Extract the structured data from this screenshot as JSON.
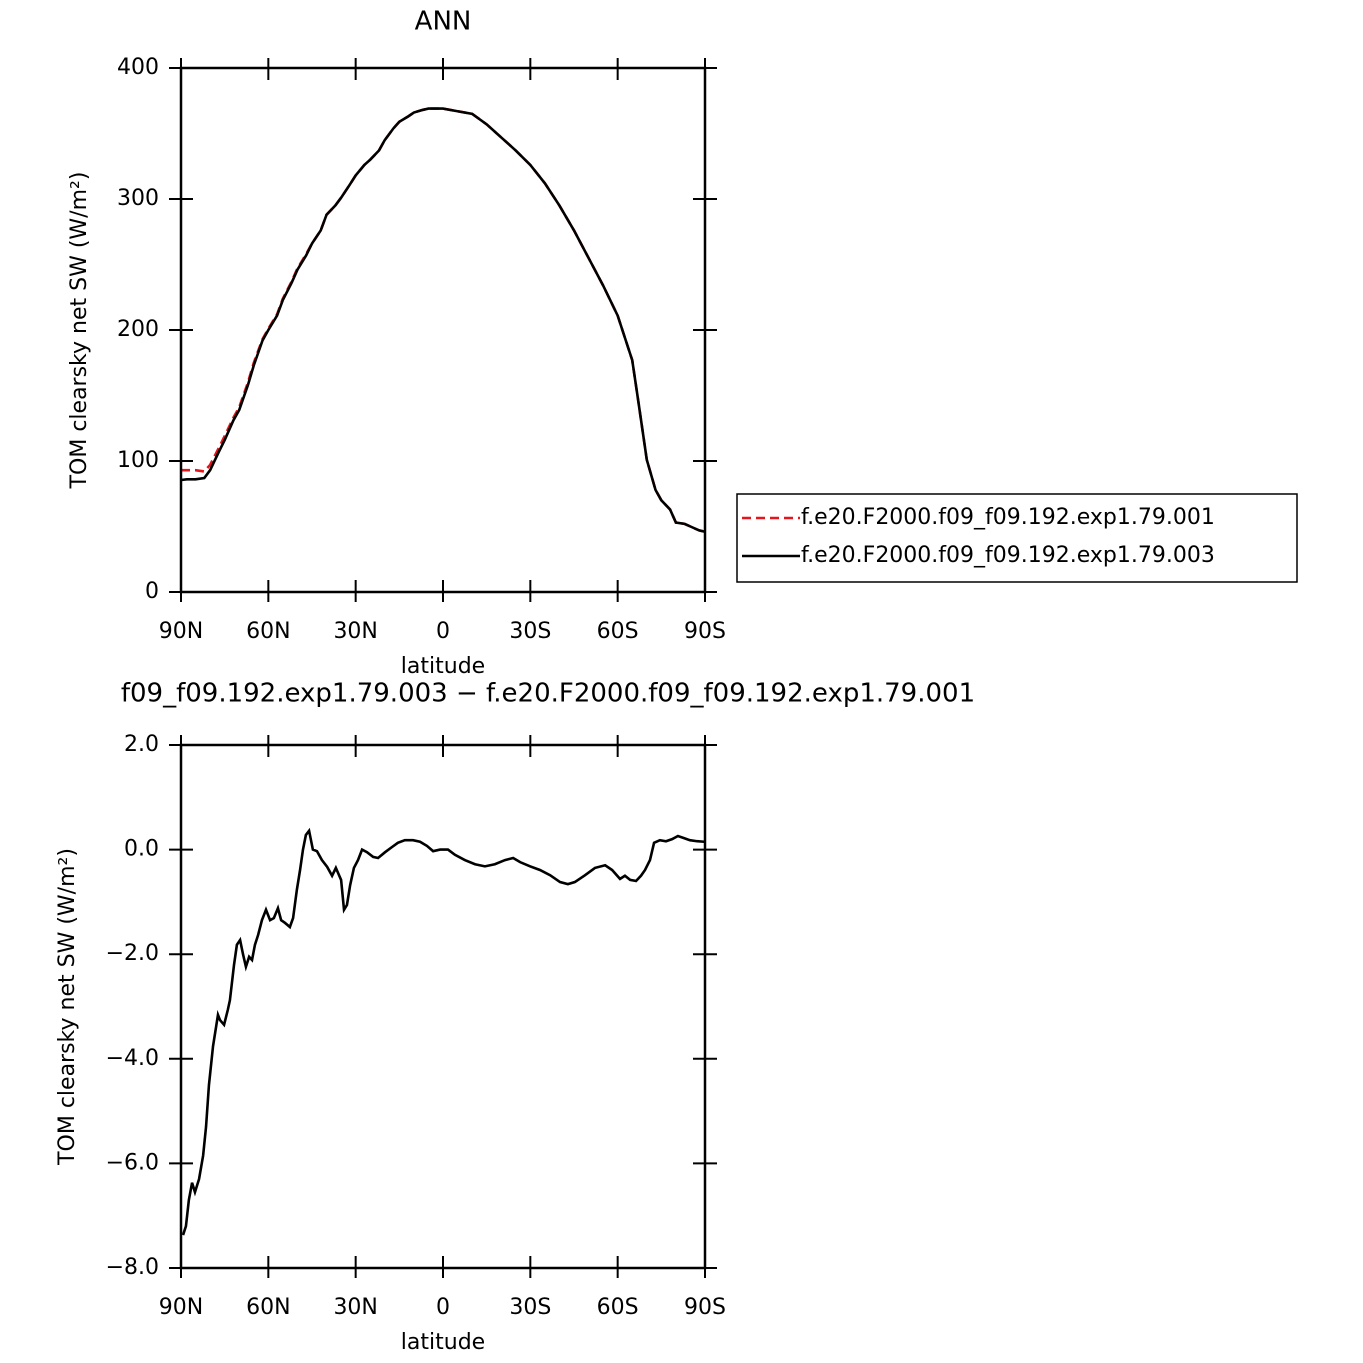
{
  "chart_data": [
    {
      "type": "line",
      "title": "ANN",
      "xlabel": "latitude",
      "ylabel": "TOM clearsky net SW (W/m²)",
      "xlim": [
        90,
        -90
      ],
      "xticks": [
        {
          "value": 90,
          "label": "90N"
        },
        {
          "value": 60,
          "label": "60N"
        },
        {
          "value": 30,
          "label": "30N"
        },
        0,
        {
          "value": -30,
          "label": "30S"
        },
        {
          "value": -60,
          "label": "60S"
        },
        {
          "value": -90,
          "label": "90S"
        }
      ],
      "ylim": [
        0,
        400
      ],
      "yticks": [
        0,
        100,
        200,
        300,
        400
      ],
      "legend": "right",
      "x": [
        90,
        88,
        85,
        82,
        80,
        77,
        75,
        72,
        70,
        67,
        65,
        62,
        60,
        57,
        55,
        52,
        50,
        47,
        45,
        42,
        40,
        37,
        35,
        32,
        30,
        27,
        25,
        22,
        20,
        17,
        15,
        12,
        10,
        7,
        5,
        0,
        -5,
        -10,
        -15,
        -20,
        -25,
        -30,
        -35,
        -40,
        -45,
        -50,
        -55,
        -60,
        -65,
        -67,
        -70,
        -73,
        -75,
        -78,
        -80,
        -83,
        -85,
        -88,
        -90
      ],
      "series": [
        {
          "name": "f.e20.F2000.f09_f09.192.exp1.79.001",
          "color": "#e8141c",
          "line_style": "dashed",
          "values": [
            93,
            93,
            93,
            92,
            97,
            110,
            119,
            133,
            141,
            160,
            175,
            193,
            201,
            212,
            224,
            237,
            247,
            258,
            266,
            276,
            288,
            295,
            301,
            311,
            318,
            326,
            330,
            337,
            345,
            354,
            359,
            363,
            366,
            368,
            369,
            369,
            367,
            365,
            357,
            347,
            337,
            326,
            312,
            295,
            276,
            255,
            234,
            211,
            177,
            147,
            101,
            78,
            70,
            63,
            53,
            52,
            50,
            47,
            46
          ]
        },
        {
          "name": "f.e20.F2000.f09_f09.192.exp1.79.003",
          "color": "#000000",
          "line_style": "solid",
          "values": [
            85.5,
            86,
            86,
            87,
            93,
            107,
            116,
            131,
            139,
            158,
            173,
            192,
            200,
            211,
            223,
            236,
            246,
            257,
            266,
            276,
            288,
            295,
            301,
            311,
            318,
            326,
            330,
            337,
            345,
            354,
            359,
            363,
            366,
            368,
            369,
            369,
            367,
            365,
            357,
            347,
            337,
            326,
            312,
            295,
            276,
            255,
            234,
            211,
            177,
            147,
            101,
            78,
            70,
            63,
            53,
            52,
            50,
            47,
            46
          ]
        }
      ]
    },
    {
      "type": "line",
      "title": "f09_f09.192.exp1.79.003 − f.e20.F2000.f09_f09.192.exp1.79.001",
      "xlabel": "latitude",
      "ylabel": "TOM clearsky net SW (W/m²)",
      "xlim": [
        90,
        -90
      ],
      "xticks": [
        {
          "value": 90,
          "label": "90N"
        },
        {
          "value": 60,
          "label": "60N"
        },
        {
          "value": 30,
          "label": "30N"
        },
        0,
        {
          "value": -30,
          "label": "30S"
        },
        {
          "value": -60,
          "label": "60S"
        },
        {
          "value": -90,
          "label": "90S"
        }
      ],
      "ylim": [
        -8,
        2
      ],
      "yticks": [
        {
          "value": 2,
          "label": "2.0"
        },
        {
          "value": 0,
          "label": "0.0"
        },
        {
          "value": -2,
          "label": "−2.0"
        },
        {
          "value": -4,
          "label": "−4.0"
        },
        {
          "value": -6,
          "label": "−6.0"
        },
        {
          "value": -8,
          "label": "−8.0"
        }
      ],
      "color": "#000000",
      "x": [
        89.3,
        88.3,
        87.3,
        86.2,
        85.2,
        83.8,
        82.4,
        81.4,
        80.4,
        79.0,
        77.3,
        76.6,
        75.2,
        73.9,
        73.2,
        71.8,
        70.8,
        69.7,
        68.7,
        67.7,
        66.6,
        65.6,
        64.6,
        63.5,
        62.2,
        60.8,
        59.4,
        58.1,
        56.7,
        55.6,
        54.3,
        52.6,
        51.5,
        50.2,
        49.1,
        48.1,
        47.1,
        46.0,
        44.7,
        43.3,
        41.6,
        39.8,
        38.1,
        36.8,
        35.0,
        34.0,
        33.0,
        31.9,
        30.6,
        29.2,
        27.8,
        26.1,
        24.0,
        22.3,
        19.9,
        17.5,
        15.5,
        13.1,
        10.3,
        7.9,
        5.5,
        3.4,
        1.0,
        -1.7,
        -4.1,
        -7.5,
        -11.0,
        -14.4,
        -17.8,
        -21.3,
        -24.1,
        -26.5,
        -29.9,
        -33.3,
        -36.8,
        -40.2,
        -42.9,
        -45.3,
        -48.8,
        -52.2,
        -55.7,
        -58.1,
        -60.8,
        -62.5,
        -64.3,
        -66.3,
        -68.0,
        -69.4,
        -71.1,
        -72.5,
        -74.5,
        -76.6,
        -78.7,
        -80.7,
        -82.8,
        -84.8,
        -87.3,
        -89.7
      ],
      "values": [
        -7.37,
        -7.2,
        -6.7,
        -6.37,
        -6.55,
        -6.3,
        -5.85,
        -5.3,
        -4.5,
        -3.76,
        -3.16,
        -3.26,
        -3.35,
        -3.06,
        -2.88,
        -2.21,
        -1.82,
        -1.73,
        -2.0,
        -2.24,
        -2.05,
        -2.11,
        -1.82,
        -1.63,
        -1.35,
        -1.15,
        -1.35,
        -1.31,
        -1.12,
        -1.35,
        -1.4,
        -1.48,
        -1.31,
        -0.77,
        -0.39,
        0.0,
        0.28,
        0.36,
        0,
        -0.03,
        -0.2,
        -0.33,
        -0.5,
        -0.35,
        -0.58,
        -1.15,
        -1.06,
        -0.68,
        -0.35,
        -0.2,
        0,
        -0.05,
        -0.14,
        -0.16,
        -0.05,
        0.05,
        0.13,
        0.18,
        0.18,
        0.15,
        0.07,
        -0.03,
        0,
        0,
        -0.1,
        -0.2,
        -0.28,
        -0.32,
        -0.28,
        -0.2,
        -0.16,
        -0.24,
        -0.32,
        -0.39,
        -0.49,
        -0.62,
        -0.66,
        -0.62,
        -0.49,
        -0.35,
        -0.3,
        -0.39,
        -0.56,
        -0.5,
        -0.58,
        -0.6,
        -0.5,
        -0.39,
        -0.2,
        0.13,
        0.18,
        0.16,
        0.2,
        0.26,
        0.22,
        0.18,
        0.16,
        0.15
      ]
    }
  ]
}
